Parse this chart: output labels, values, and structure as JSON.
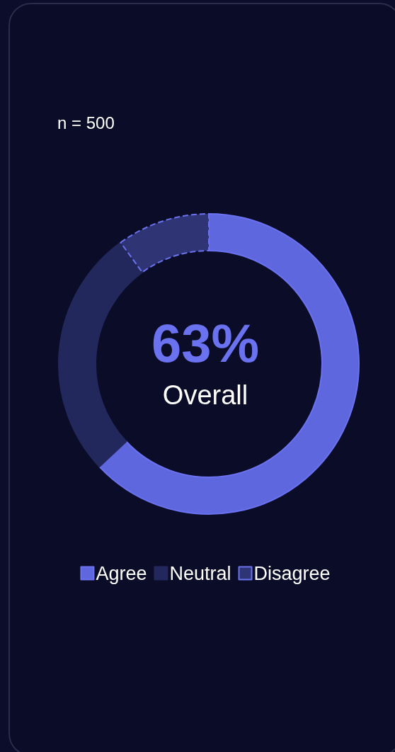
{
  "chart_data": {
    "type": "donut",
    "subtitle": "n = 500",
    "annotations": [
      "63%",
      "Overall"
    ],
    "categories": [
      "Agree",
      "Neutral",
      "Disagree"
    ],
    "values": [
      63,
      27,
      10
    ],
    "colors": [
      "#5f67de",
      "#23285c",
      "#2f3475"
    ],
    "legend": "bottom"
  }
}
